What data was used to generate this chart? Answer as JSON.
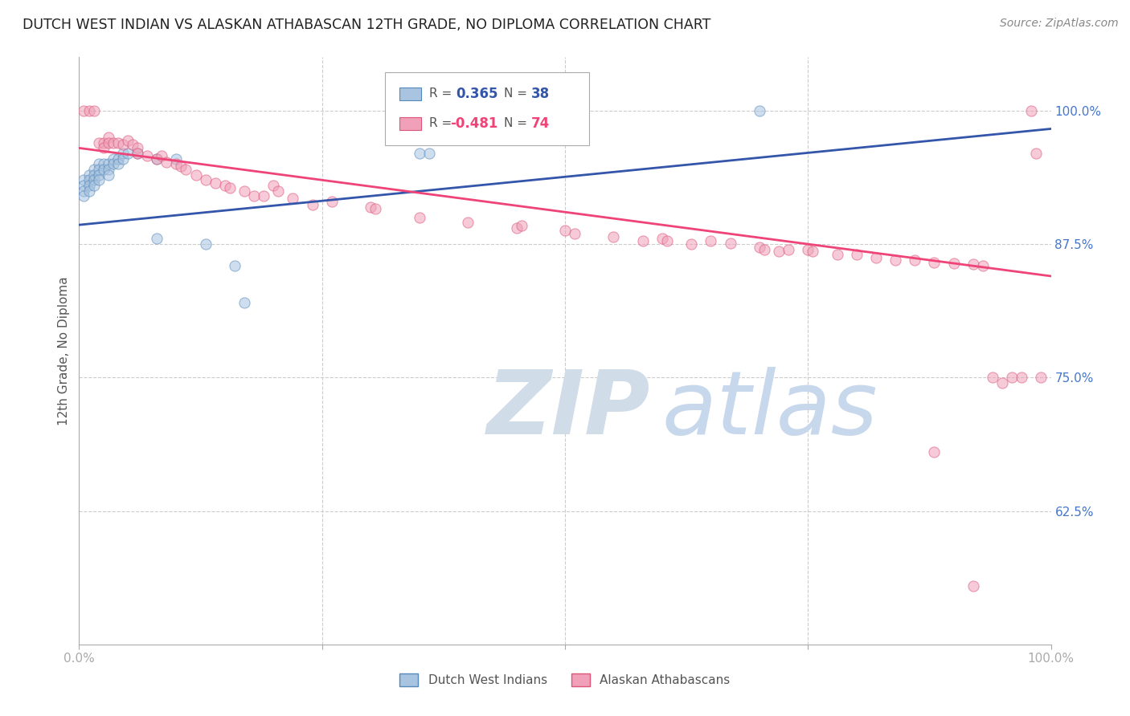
{
  "title": "DUTCH WEST INDIAN VS ALASKAN ATHABASCAN 12TH GRADE, NO DIPLOMA CORRELATION CHART",
  "source": "Source: ZipAtlas.com",
  "ylabel": "12th Grade, No Diploma",
  "ytick_labels": [
    "100.0%",
    "87.5%",
    "75.0%",
    "62.5%"
  ],
  "ytick_values": [
    1.0,
    0.875,
    0.75,
    0.625
  ],
  "xlim": [
    0.0,
    1.0
  ],
  "ylim": [
    0.5,
    1.05
  ],
  "legend_blue_r": "0.365",
  "legend_blue_n": "38",
  "legend_pink_r": "-0.481",
  "legend_pink_n": "74",
  "blue_face_color": "#A8C4E0",
  "blue_edge_color": "#5588BB",
  "pink_face_color": "#F0A0B8",
  "pink_edge_color": "#DD5577",
  "blue_line_color": "#3355AA",
  "pink_line_color": "#EE4477",
  "blue_scatter": [
    [
      0.005,
      0.935
    ],
    [
      0.005,
      0.93
    ],
    [
      0.005,
      0.925
    ],
    [
      0.005,
      0.92
    ],
    [
      0.01,
      0.94
    ],
    [
      0.01,
      0.935
    ],
    [
      0.01,
      0.93
    ],
    [
      0.01,
      0.925
    ],
    [
      0.015,
      0.945
    ],
    [
      0.015,
      0.94
    ],
    [
      0.015,
      0.935
    ],
    [
      0.015,
      0.93
    ],
    [
      0.02,
      0.95
    ],
    [
      0.02,
      0.945
    ],
    [
      0.02,
      0.94
    ],
    [
      0.02,
      0.935
    ],
    [
      0.025,
      0.95
    ],
    [
      0.025,
      0.945
    ],
    [
      0.03,
      0.95
    ],
    [
      0.03,
      0.945
    ],
    [
      0.03,
      0.94
    ],
    [
      0.035,
      0.955
    ],
    [
      0.035,
      0.95
    ],
    [
      0.04,
      0.955
    ],
    [
      0.04,
      0.95
    ],
    [
      0.045,
      0.96
    ],
    [
      0.045,
      0.955
    ],
    [
      0.05,
      0.96
    ],
    [
      0.06,
      0.96
    ],
    [
      0.08,
      0.955
    ],
    [
      0.1,
      0.955
    ],
    [
      0.13,
      0.875
    ],
    [
      0.16,
      0.855
    ],
    [
      0.17,
      0.82
    ],
    [
      0.35,
      0.96
    ],
    [
      0.36,
      0.96
    ],
    [
      0.7,
      1.0
    ],
    [
      0.08,
      0.88
    ]
  ],
  "pink_scatter": [
    [
      0.005,
      1.0
    ],
    [
      0.01,
      1.0
    ],
    [
      0.015,
      1.0
    ],
    [
      0.02,
      0.97
    ],
    [
      0.025,
      0.97
    ],
    [
      0.025,
      0.965
    ],
    [
      0.03,
      0.975
    ],
    [
      0.03,
      0.97
    ],
    [
      0.035,
      0.97
    ],
    [
      0.04,
      0.97
    ],
    [
      0.045,
      0.968
    ],
    [
      0.05,
      0.972
    ],
    [
      0.055,
      0.968
    ],
    [
      0.06,
      0.965
    ],
    [
      0.06,
      0.96
    ],
    [
      0.07,
      0.958
    ],
    [
      0.08,
      0.955
    ],
    [
      0.085,
      0.958
    ],
    [
      0.09,
      0.952
    ],
    [
      0.1,
      0.95
    ],
    [
      0.105,
      0.948
    ],
    [
      0.11,
      0.945
    ],
    [
      0.12,
      0.94
    ],
    [
      0.13,
      0.935
    ],
    [
      0.14,
      0.932
    ],
    [
      0.15,
      0.93
    ],
    [
      0.155,
      0.928
    ],
    [
      0.17,
      0.925
    ],
    [
      0.18,
      0.92
    ],
    [
      0.19,
      0.92
    ],
    [
      0.2,
      0.93
    ],
    [
      0.205,
      0.925
    ],
    [
      0.22,
      0.918
    ],
    [
      0.24,
      0.912
    ],
    [
      0.26,
      0.915
    ],
    [
      0.3,
      0.91
    ],
    [
      0.305,
      0.908
    ],
    [
      0.35,
      0.9
    ],
    [
      0.4,
      0.895
    ],
    [
      0.45,
      0.89
    ],
    [
      0.455,
      0.892
    ],
    [
      0.5,
      0.888
    ],
    [
      0.51,
      0.885
    ],
    [
      0.55,
      0.882
    ],
    [
      0.58,
      0.878
    ],
    [
      0.6,
      0.88
    ],
    [
      0.605,
      0.878
    ],
    [
      0.63,
      0.875
    ],
    [
      0.65,
      0.878
    ],
    [
      0.67,
      0.876
    ],
    [
      0.7,
      0.872
    ],
    [
      0.705,
      0.87
    ],
    [
      0.72,
      0.868
    ],
    [
      0.73,
      0.87
    ],
    [
      0.75,
      0.87
    ],
    [
      0.755,
      0.868
    ],
    [
      0.78,
      0.865
    ],
    [
      0.8,
      0.865
    ],
    [
      0.82,
      0.862
    ],
    [
      0.84,
      0.86
    ],
    [
      0.86,
      0.86
    ],
    [
      0.88,
      0.858
    ],
    [
      0.9,
      0.857
    ],
    [
      0.92,
      0.856
    ],
    [
      0.93,
      0.855
    ],
    [
      0.94,
      0.75
    ],
    [
      0.95,
      0.745
    ],
    [
      0.96,
      0.75
    ],
    [
      0.97,
      0.75
    ],
    [
      0.98,
      1.0
    ],
    [
      0.985,
      0.96
    ],
    [
      0.99,
      0.75
    ],
    [
      0.88,
      0.68
    ],
    [
      0.92,
      0.555
    ]
  ],
  "background_color": "#FFFFFF",
  "grid_color": "#CCCCCC",
  "blue_line_x": [
    0.0,
    1.0
  ],
  "blue_line_y": [
    0.893,
    0.983
  ],
  "pink_line_x": [
    0.0,
    1.0
  ],
  "pink_line_y": [
    0.965,
    0.845
  ],
  "marker_size": 90,
  "marker_alpha": 0.55,
  "marker_lw": 0.8
}
